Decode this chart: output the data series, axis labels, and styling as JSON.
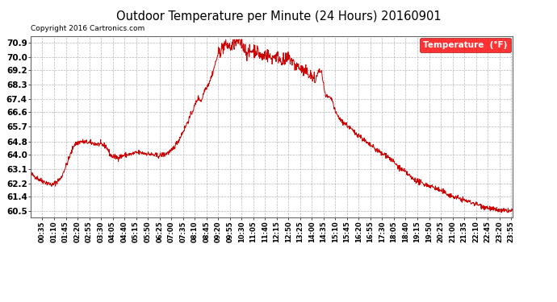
{
  "title": "Outdoor Temperature per Minute (24 Hours) 20160901",
  "copyright_text": "Copyright 2016 Cartronics.com",
  "legend_label": "Temperature  (°F)",
  "line_color": "#cc0000",
  "background_color": "#ffffff",
  "grid_color": "#b0b0b0",
  "yticks": [
    60.5,
    61.4,
    62.2,
    63.1,
    64.0,
    64.8,
    65.7,
    66.6,
    67.4,
    68.3,
    69.2,
    70.0,
    70.9
  ],
  "ylim": [
    60.1,
    71.3
  ],
  "xtick_labels": [
    "00:35",
    "01:10",
    "01:45",
    "02:20",
    "02:55",
    "03:30",
    "04:05",
    "04:40",
    "05:15",
    "05:50",
    "06:25",
    "07:00",
    "07:35",
    "08:10",
    "08:45",
    "09:20",
    "09:55",
    "10:30",
    "11:05",
    "11:40",
    "12:15",
    "12:50",
    "13:25",
    "14:00",
    "14:35",
    "15:10",
    "15:45",
    "16:20",
    "16:55",
    "17:30",
    "18:05",
    "18:40",
    "19:15",
    "19:50",
    "20:25",
    "21:00",
    "21:35",
    "22:10",
    "22:45",
    "23:20",
    "23:55"
  ],
  "control_points": [
    [
      0,
      62.8
    ],
    [
      30,
      62.4
    ],
    [
      65,
      62.1
    ],
    [
      90,
      62.5
    ],
    [
      110,
      63.5
    ],
    [
      130,
      64.6
    ],
    [
      150,
      64.8
    ],
    [
      180,
      64.7
    ],
    [
      210,
      64.6
    ],
    [
      225,
      64.5
    ],
    [
      240,
      63.9
    ],
    [
      260,
      63.8
    ],
    [
      280,
      63.95
    ],
    [
      300,
      64.0
    ],
    [
      315,
      64.1
    ],
    [
      330,
      64.1
    ],
    [
      360,
      64.0
    ],
    [
      380,
      63.9
    ],
    [
      400,
      64.0
    ],
    [
      420,
      64.2
    ],
    [
      440,
      64.8
    ],
    [
      460,
      65.6
    ],
    [
      480,
      66.5
    ],
    [
      500,
      67.5
    ],
    [
      510,
      67.3
    ],
    [
      520,
      68.0
    ],
    [
      530,
      68.3
    ],
    [
      540,
      68.8
    ],
    [
      550,
      69.5
    ],
    [
      560,
      70.2
    ],
    [
      570,
      70.5
    ],
    [
      580,
      70.8
    ],
    [
      590,
      70.7
    ],
    [
      600,
      70.6
    ],
    [
      610,
      70.9
    ],
    [
      620,
      71.0
    ],
    [
      630,
      70.9
    ],
    [
      640,
      70.5
    ],
    [
      650,
      70.2
    ],
    [
      660,
      70.4
    ],
    [
      670,
      70.5
    ],
    [
      680,
      70.3
    ],
    [
      690,
      70.0
    ],
    [
      700,
      70.2
    ],
    [
      710,
      70.1
    ],
    [
      720,
      69.9
    ],
    [
      730,
      70.1
    ],
    [
      740,
      70.0
    ],
    [
      750,
      69.8
    ],
    [
      760,
      69.7
    ],
    [
      770,
      70.0
    ],
    [
      780,
      69.8
    ],
    [
      790,
      69.5
    ],
    [
      800,
      69.4
    ],
    [
      810,
      69.2
    ],
    [
      820,
      69.1
    ],
    [
      830,
      69.0
    ],
    [
      840,
      68.8
    ],
    [
      850,
      68.5
    ],
    [
      860,
      69.2
    ],
    [
      870,
      69.0
    ],
    [
      875,
      68.3
    ],
    [
      880,
      67.6
    ],
    [
      890,
      67.5
    ],
    [
      900,
      67.4
    ],
    [
      910,
      66.6
    ],
    [
      920,
      66.3
    ],
    [
      930,
      66.0
    ],
    [
      940,
      65.9
    ],
    [
      950,
      65.7
    ],
    [
      960,
      65.5
    ],
    [
      970,
      65.3
    ],
    [
      980,
      65.2
    ],
    [
      990,
      65.0
    ],
    [
      1000,
      64.8
    ],
    [
      1010,
      64.6
    ],
    [
      1020,
      64.5
    ],
    [
      1030,
      64.3
    ],
    [
      1040,
      64.2
    ],
    [
      1050,
      64.0
    ],
    [
      1060,
      64.0
    ],
    [
      1070,
      63.8
    ],
    [
      1080,
      63.6
    ],
    [
      1090,
      63.4
    ],
    [
      1100,
      63.2
    ],
    [
      1110,
      63.0
    ],
    [
      1120,
      62.9
    ],
    [
      1130,
      62.7
    ],
    [
      1140,
      62.5
    ],
    [
      1150,
      62.4
    ],
    [
      1160,
      62.3
    ],
    [
      1170,
      62.2
    ],
    [
      1200,
      62.0
    ],
    [
      1230,
      61.7
    ],
    [
      1260,
      61.4
    ],
    [
      1290,
      61.2
    ],
    [
      1320,
      61.0
    ],
    [
      1350,
      60.8
    ],
    [
      1380,
      60.6
    ],
    [
      1410,
      60.5
    ],
    [
      1439,
      60.5
    ]
  ]
}
